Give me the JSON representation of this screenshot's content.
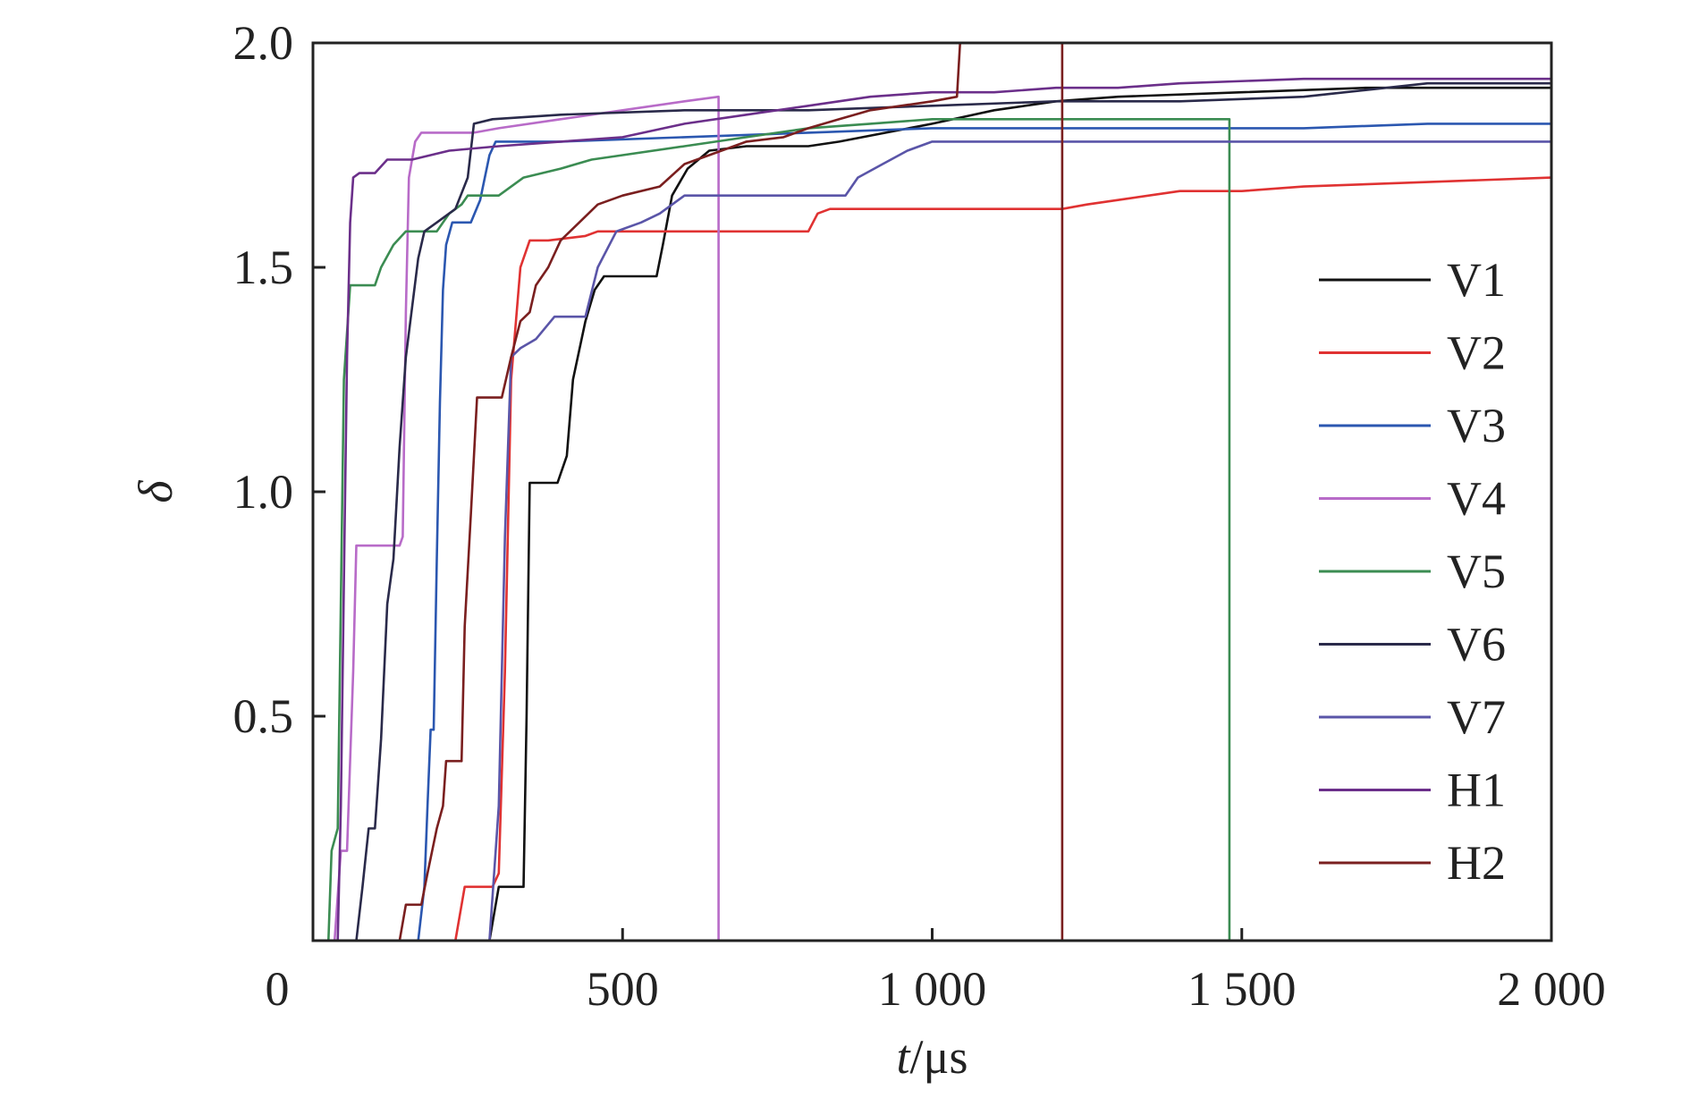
{
  "chart_data": {
    "type": "line",
    "xlabel": {
      "italic": "t",
      "unit": "/μs"
    },
    "ylabel": "δ",
    "xlim": [
      0,
      2000
    ],
    "ylim": [
      0,
      2.0
    ],
    "x_ticks": [
      {
        "value": 0,
        "label": "0"
      },
      {
        "value": 500,
        "label": "500"
      },
      {
        "value": 1000,
        "label": "1 000"
      },
      {
        "value": 1500,
        "label": "1 500"
      },
      {
        "value": 2000,
        "label": "2 000"
      }
    ],
    "y_ticks": [
      {
        "value": 0.5,
        "label": "0.5"
      },
      {
        "value": 1.0,
        "label": "1.0"
      },
      {
        "value": 1.5,
        "label": "1.5"
      },
      {
        "value": 2.0,
        "label": "2.0"
      }
    ],
    "grid": false,
    "legend_position": "right",
    "series": [
      {
        "name": "V1",
        "color": "#111111",
        "points": [
          [
            285,
            0
          ],
          [
            300,
            0.12
          ],
          [
            340,
            0.12
          ],
          [
            345,
            0.5
          ],
          [
            350,
            1.02
          ],
          [
            395,
            1.02
          ],
          [
            410,
            1.08
          ],
          [
            420,
            1.25
          ],
          [
            440,
            1.38
          ],
          [
            455,
            1.45
          ],
          [
            470,
            1.48
          ],
          [
            530,
            1.48
          ],
          [
            555,
            1.48
          ],
          [
            565,
            1.55
          ],
          [
            580,
            1.66
          ],
          [
            605,
            1.72
          ],
          [
            640,
            1.76
          ],
          [
            700,
            1.77
          ],
          [
            800,
            1.77
          ],
          [
            850,
            1.78
          ],
          [
            1000,
            1.82
          ],
          [
            1100,
            1.85
          ],
          [
            1200,
            1.87
          ],
          [
            1300,
            1.88
          ],
          [
            1500,
            1.89
          ],
          [
            1700,
            1.9
          ],
          [
            2000,
            1.9
          ]
        ]
      },
      {
        "name": "V2",
        "color": "#e03232",
        "points": [
          [
            230,
            0
          ],
          [
            245,
            0.12
          ],
          [
            270,
            0.12
          ],
          [
            290,
            0.12
          ],
          [
            300,
            0.15
          ],
          [
            310,
            0.6
          ],
          [
            320,
            1.25
          ],
          [
            335,
            1.5
          ],
          [
            350,
            1.56
          ],
          [
            380,
            1.56
          ],
          [
            440,
            1.57
          ],
          [
            460,
            1.58
          ],
          [
            560,
            1.58
          ],
          [
            800,
            1.58
          ],
          [
            815,
            1.62
          ],
          [
            835,
            1.63
          ],
          [
            900,
            1.63
          ],
          [
            1000,
            1.63
          ],
          [
            1100,
            1.63
          ],
          [
            1210,
            1.63
          ],
          [
            1250,
            1.64
          ],
          [
            1300,
            1.65
          ],
          [
            1400,
            1.67
          ],
          [
            1500,
            1.67
          ],
          [
            1600,
            1.68
          ],
          [
            1800,
            1.69
          ],
          [
            2000,
            1.7
          ]
        ]
      },
      {
        "name": "V3",
        "color": "#2b57b0",
        "points": [
          [
            170,
            0
          ],
          [
            180,
            0.12
          ],
          [
            185,
            0.3
          ],
          [
            190,
            0.47
          ],
          [
            195,
            0.47
          ],
          [
            200,
            0.85
          ],
          [
            205,
            1.2
          ],
          [
            210,
            1.45
          ],
          [
            215,
            1.55
          ],
          [
            225,
            1.6
          ],
          [
            255,
            1.6
          ],
          [
            270,
            1.65
          ],
          [
            285,
            1.75
          ],
          [
            295,
            1.78
          ],
          [
            400,
            1.78
          ],
          [
            600,
            1.79
          ],
          [
            800,
            1.8
          ],
          [
            1000,
            1.81
          ],
          [
            1200,
            1.81
          ],
          [
            1400,
            1.81
          ],
          [
            1600,
            1.81
          ],
          [
            1800,
            1.82
          ],
          [
            2000,
            1.82
          ]
        ]
      },
      {
        "name": "V4",
        "color": "#b86bc8",
        "points": [
          [
            35,
            0
          ],
          [
            40,
            0.1
          ],
          [
            45,
            0.2
          ],
          [
            55,
            0.2
          ],
          [
            65,
            0.6
          ],
          [
            70,
            0.88
          ],
          [
            140,
            0.88
          ],
          [
            145,
            0.9
          ],
          [
            150,
            1.4
          ],
          [
            155,
            1.7
          ],
          [
            165,
            1.78
          ],
          [
            175,
            1.8
          ],
          [
            200,
            1.8
          ],
          [
            260,
            1.8
          ],
          [
            300,
            1.81
          ],
          [
            400,
            1.83
          ],
          [
            500,
            1.85
          ],
          [
            600,
            1.87
          ],
          [
            655,
            1.88
          ],
          [
            655,
            0
          ]
        ]
      },
      {
        "name": "V5",
        "color": "#3b8c52",
        "points": [
          [
            25,
            0
          ],
          [
            30,
            0.2
          ],
          [
            40,
            0.25
          ],
          [
            50,
            1.25
          ],
          [
            60,
            1.46
          ],
          [
            100,
            1.46
          ],
          [
            110,
            1.5
          ],
          [
            130,
            1.55
          ],
          [
            150,
            1.58
          ],
          [
            200,
            1.58
          ],
          [
            220,
            1.62
          ],
          [
            240,
            1.64
          ],
          [
            250,
            1.66
          ],
          [
            300,
            1.66
          ],
          [
            340,
            1.7
          ],
          [
            400,
            1.72
          ],
          [
            450,
            1.74
          ],
          [
            500,
            1.75
          ],
          [
            600,
            1.77
          ],
          [
            700,
            1.79
          ],
          [
            800,
            1.81
          ],
          [
            900,
            1.82
          ],
          [
            1000,
            1.83
          ],
          [
            1100,
            1.83
          ],
          [
            1200,
            1.83
          ],
          [
            1300,
            1.83
          ],
          [
            1400,
            1.83
          ],
          [
            1480,
            1.83
          ],
          [
            1480,
            0
          ]
        ]
      },
      {
        "name": "V6",
        "color": "#2a2a4a",
        "points": [
          [
            70,
            0
          ],
          [
            80,
            0.12
          ],
          [
            90,
            0.25
          ],
          [
            100,
            0.25
          ],
          [
            110,
            0.45
          ],
          [
            120,
            0.75
          ],
          [
            130,
            0.85
          ],
          [
            140,
            1.1
          ],
          [
            150,
            1.3
          ],
          [
            170,
            1.52
          ],
          [
            180,
            1.58
          ],
          [
            200,
            1.6
          ],
          [
            230,
            1.63
          ],
          [
            250,
            1.7
          ],
          [
            260,
            1.82
          ],
          [
            290,
            1.83
          ],
          [
            400,
            1.84
          ],
          [
            600,
            1.85
          ],
          [
            800,
            1.85
          ],
          [
            1000,
            1.86
          ],
          [
            1200,
            1.87
          ],
          [
            1400,
            1.87
          ],
          [
            1600,
            1.88
          ],
          [
            1800,
            1.91
          ],
          [
            2000,
            1.91
          ]
        ]
      },
      {
        "name": "V7",
        "color": "#5a55a8",
        "points": [
          [
            285,
            0
          ],
          [
            300,
            0.3
          ],
          [
            310,
            0.9
          ],
          [
            320,
            1.3
          ],
          [
            335,
            1.32
          ],
          [
            360,
            1.34
          ],
          [
            390,
            1.39
          ],
          [
            440,
            1.39
          ],
          [
            460,
            1.5
          ],
          [
            490,
            1.58
          ],
          [
            530,
            1.6
          ],
          [
            560,
            1.62
          ],
          [
            600,
            1.66
          ],
          [
            650,
            1.66
          ],
          [
            700,
            1.66
          ],
          [
            800,
            1.66
          ],
          [
            860,
            1.66
          ],
          [
            880,
            1.7
          ],
          [
            920,
            1.73
          ],
          [
            960,
            1.76
          ],
          [
            1000,
            1.78
          ],
          [
            1100,
            1.78
          ],
          [
            1300,
            1.78
          ],
          [
            1500,
            1.78
          ],
          [
            1700,
            1.78
          ],
          [
            2000,
            1.78
          ]
        ]
      },
      {
        "name": "H1",
        "color": "#6b2f8a",
        "points": [
          [
            40,
            0
          ],
          [
            45,
            0.3
          ],
          [
            50,
            0.8
          ],
          [
            55,
            1.3
          ],
          [
            60,
            1.6
          ],
          [
            65,
            1.7
          ],
          [
            75,
            1.71
          ],
          [
            100,
            1.71
          ],
          [
            120,
            1.74
          ],
          [
            160,
            1.74
          ],
          [
            220,
            1.76
          ],
          [
            300,
            1.77
          ],
          [
            400,
            1.78
          ],
          [
            500,
            1.79
          ],
          [
            600,
            1.82
          ],
          [
            700,
            1.84
          ],
          [
            800,
            1.86
          ],
          [
            900,
            1.88
          ],
          [
            1000,
            1.89
          ],
          [
            1100,
            1.89
          ],
          [
            1200,
            1.9
          ],
          [
            1300,
            1.9
          ],
          [
            1400,
            1.91
          ],
          [
            1600,
            1.92
          ],
          [
            2000,
            1.92
          ]
        ]
      },
      {
        "name": "H2",
        "color": "#7a1f1f",
        "points": [
          [
            140,
            0
          ],
          [
            150,
            0.08
          ],
          [
            175,
            0.08
          ],
          [
            185,
            0.15
          ],
          [
            200,
            0.25
          ],
          [
            210,
            0.3
          ],
          [
            215,
            0.4
          ],
          [
            240,
            0.4
          ],
          [
            245,
            0.7
          ],
          [
            255,
            0.95
          ],
          [
            265,
            1.21
          ],
          [
            305,
            1.21
          ],
          [
            320,
            1.3
          ],
          [
            335,
            1.38
          ],
          [
            350,
            1.4
          ],
          [
            360,
            1.46
          ],
          [
            380,
            1.5
          ],
          [
            400,
            1.56
          ],
          [
            430,
            1.6
          ],
          [
            460,
            1.64
          ],
          [
            500,
            1.66
          ],
          [
            560,
            1.68
          ],
          [
            600,
            1.73
          ],
          [
            640,
            1.75
          ],
          [
            700,
            1.78
          ],
          [
            760,
            1.79
          ],
          [
            800,
            1.81
          ],
          [
            850,
            1.83
          ],
          [
            900,
            1.85
          ],
          [
            1000,
            1.87
          ],
          [
            1040,
            1.88
          ],
          [
            1045,
            2.0
          ],
          [
            1210,
            2.0
          ],
          [
            1210,
            0
          ]
        ]
      }
    ]
  }
}
